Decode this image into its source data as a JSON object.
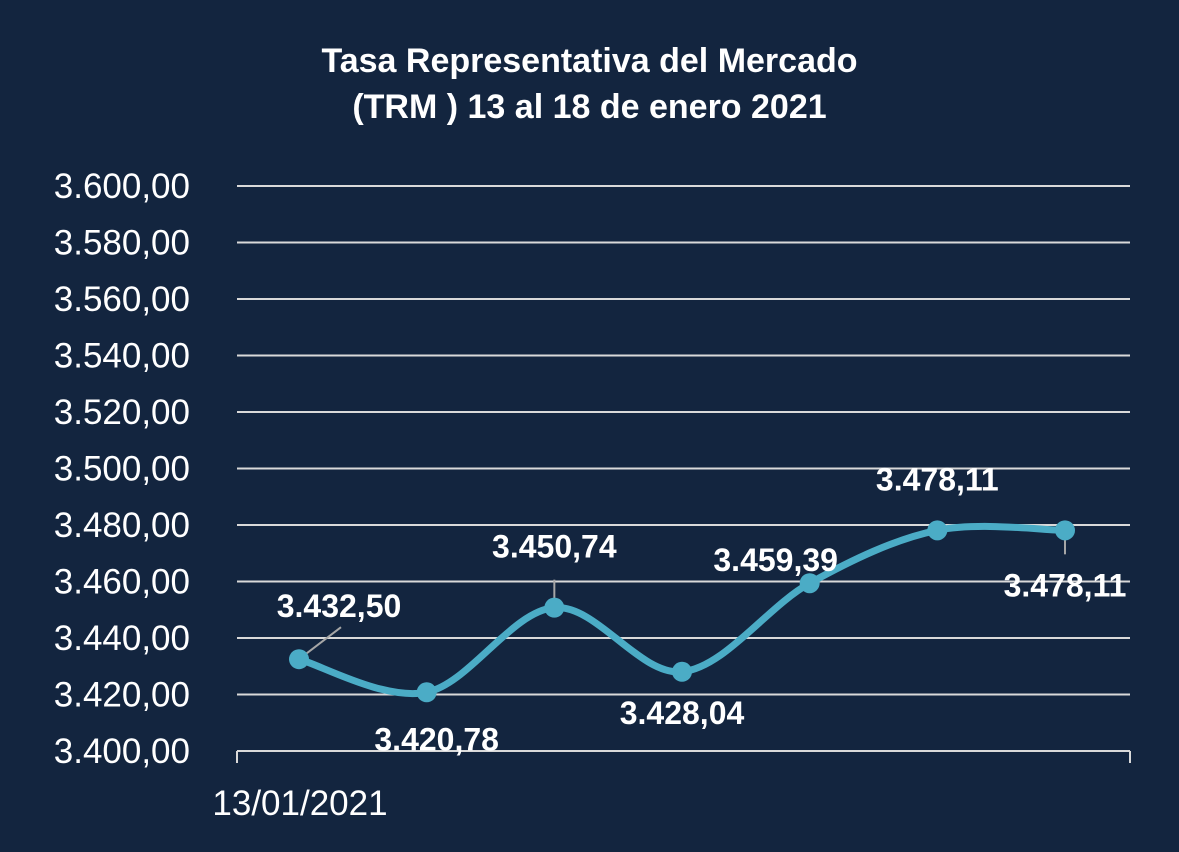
{
  "chart_data": {
    "type": "line",
    "title_line1": "Tasa Representativa del Mercado",
    "title_line2": "(TRM ) 13 al 18 de enero 2021",
    "xlabel": "",
    "ylabel": "",
    "ylim": [
      3400,
      3600
    ],
    "y_step": 20,
    "y_tick_labels": [
      "3.400,00",
      "3.420,00",
      "3.440,00",
      "3.460,00",
      "3.480,00",
      "3.500,00",
      "3.520,00",
      "3.540,00",
      "3.560,00",
      "3.580,00",
      "3.600,00"
    ],
    "x_tick_labels": [
      "13/01/2021"
    ],
    "grid": true,
    "legend": "none",
    "smooth": true,
    "series": [
      {
        "values": [
          3432.5,
          3420.78,
          3450.74,
          3428.04,
          3459.39,
          3478.11,
          3478.11
        ],
        "data_labels": [
          "3.432,50",
          "3.420,78",
          "3.450,74",
          "3.428,04",
          "3.459,39",
          "3.478,11",
          "3.478,11"
        ],
        "color": "#4bacc6"
      }
    ],
    "colors": {
      "background": "#13253f",
      "gridline": "#d9d9d9",
      "text": "#ffffff",
      "series": "#4bacc6",
      "leader_line": "#a6a6a6"
    }
  }
}
